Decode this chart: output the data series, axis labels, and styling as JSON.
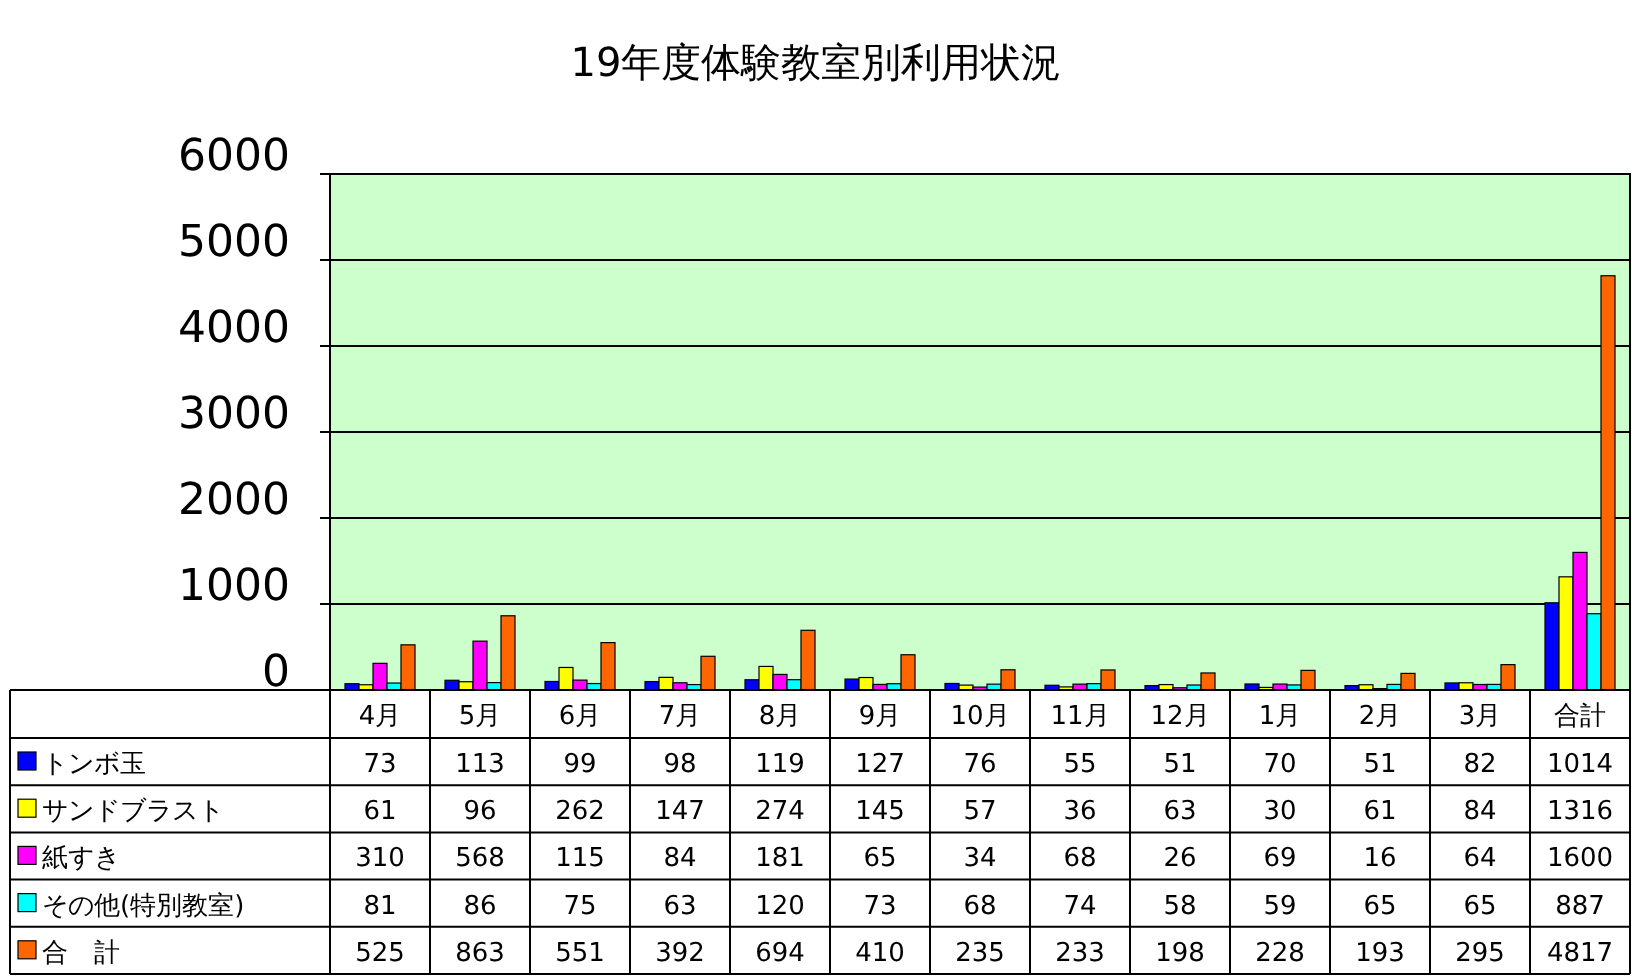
{
  "chart_data": {
    "type": "bar",
    "title": "19年度体験教室別利用状況",
    "categories": [
      "4月",
      "5月",
      "6月",
      "7月",
      "8月",
      "9月",
      "10月",
      "11月",
      "12月",
      "1月",
      "2月",
      "3月",
      "合計"
    ],
    "series": [
      {
        "name": "トンボ玉",
        "color": "#0000ff",
        "values": [
          73,
          113,
          99,
          98,
          119,
          127,
          76,
          55,
          51,
          70,
          51,
          82,
          1014
        ]
      },
      {
        "name": "サンドブラスト",
        "color": "#ffff00",
        "values": [
          61,
          96,
          262,
          147,
          274,
          145,
          57,
          36,
          63,
          30,
          61,
          84,
          1316
        ]
      },
      {
        "name": "紙すき",
        "color": "#ff00ff",
        "values": [
          310,
          568,
          115,
          84,
          181,
          65,
          34,
          68,
          26,
          69,
          16,
          64,
          1600
        ]
      },
      {
        "name": "その他(特別教室)",
        "color": "#00ffff",
        "values": [
          81,
          86,
          75,
          63,
          120,
          73,
          68,
          74,
          58,
          59,
          65,
          65,
          887
        ]
      },
      {
        "name": "合　計",
        "color": "#ff6600",
        "values": [
          525,
          863,
          551,
          392,
          694,
          410,
          235,
          233,
          198,
          228,
          193,
          295,
          4817
        ]
      }
    ],
    "ylim": [
      0,
      6000
    ],
    "yticks": [
      0,
      1000,
      2000,
      3000,
      4000,
      5000,
      6000
    ],
    "grid": "y",
    "data_labels": true,
    "legend": "bottom left"
  }
}
